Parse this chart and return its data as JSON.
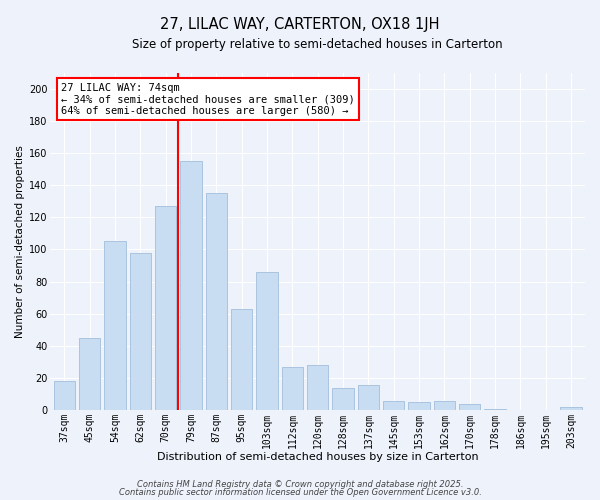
{
  "title": "27, LILAC WAY, CARTERTON, OX18 1JH",
  "subtitle": "Size of property relative to semi-detached houses in Carterton",
  "xlabel": "Distribution of semi-detached houses by size in Carterton",
  "ylabel": "Number of semi-detached properties",
  "categories": [
    "37sqm",
    "45sqm",
    "54sqm",
    "62sqm",
    "70sqm",
    "79sqm",
    "87sqm",
    "95sqm",
    "103sqm",
    "112sqm",
    "120sqm",
    "128sqm",
    "137sqm",
    "145sqm",
    "153sqm",
    "162sqm",
    "170sqm",
    "178sqm",
    "186sqm",
    "195sqm",
    "203sqm"
  ],
  "values": [
    18,
    45,
    105,
    98,
    127,
    155,
    135,
    63,
    86,
    27,
    28,
    14,
    16,
    6,
    5,
    6,
    4,
    1,
    0,
    0,
    2
  ],
  "bar_color": "#c9ddf2",
  "bar_edge_color": "#aac4e0",
  "vline_x_index": 4,
  "vline_color": "red",
  "annotation_title": "27 LILAC WAY: 74sqm",
  "annotation_line1": "← 34% of semi-detached houses are smaller (309)",
  "annotation_line2": "64% of semi-detached houses are larger (580) →",
  "ylim": [
    0,
    210
  ],
  "yticks": [
    0,
    20,
    40,
    60,
    80,
    100,
    120,
    140,
    160,
    180,
    200
  ],
  "footer1": "Contains HM Land Registry data © Crown copyright and database right 2025.",
  "footer2": "Contains public sector information licensed under the Open Government Licence v3.0.",
  "background_color": "#eef2fb",
  "grid_color": "#ffffff",
  "title_fontsize": 10.5,
  "subtitle_fontsize": 8.5,
  "xlabel_fontsize": 8,
  "ylabel_fontsize": 7.5,
  "tick_fontsize": 7,
  "annotation_fontsize": 7.5,
  "footer_fontsize": 6
}
